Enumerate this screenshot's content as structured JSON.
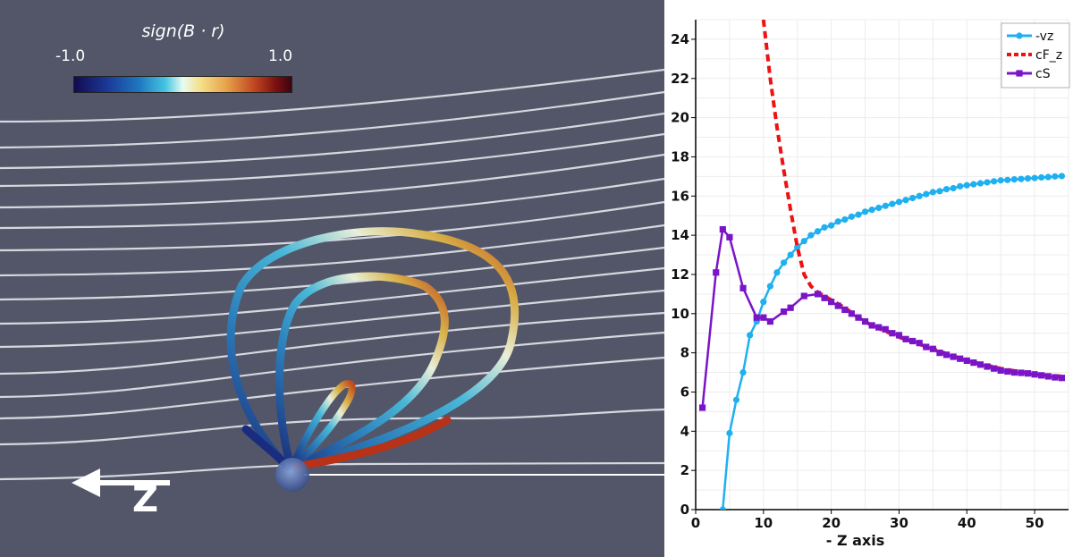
{
  "left_panel": {
    "colorbar": {
      "title": "sign(B · r)",
      "min_label": "-1.0",
      "max_label": "1.0"
    },
    "axis_label": "Z"
  },
  "chart_data": {
    "type": "line",
    "xlabel": "- Z axis",
    "ylabel": "",
    "xlim": [
      0,
      55
    ],
    "ylim": [
      0,
      25
    ],
    "x_ticks": [
      "0",
      "10",
      "20",
      "30",
      "40",
      "50"
    ],
    "y_ticks": [
      "0",
      "2",
      "4",
      "6",
      "8",
      "10",
      "12",
      "14",
      "16",
      "18",
      "20",
      "22",
      "24"
    ],
    "grid": true,
    "legend": "top-right",
    "series": [
      {
        "name": "-vz",
        "color": "#1fb0f0",
        "style": "solid",
        "marker": "circle",
        "x": [
          4,
          5,
          6,
          7,
          8,
          9,
          10,
          11,
          12,
          13,
          14,
          15,
          16,
          17,
          18,
          19,
          20,
          21,
          22,
          23,
          24,
          25,
          26,
          27,
          28,
          29,
          30,
          31,
          32,
          33,
          34,
          35,
          36,
          37,
          38,
          39,
          40,
          41,
          42,
          43,
          44,
          45,
          46,
          47,
          48,
          49,
          50,
          51,
          52,
          53,
          54
        ],
        "y": [
          0,
          3.9,
          5.6,
          7.0,
          8.9,
          9.6,
          10.6,
          11.4,
          12.1,
          12.6,
          13.0,
          13.4,
          13.7,
          14.0,
          14.2,
          14.4,
          14.5,
          14.7,
          14.8,
          14.95,
          15.05,
          15.2,
          15.3,
          15.4,
          15.5,
          15.6,
          15.7,
          15.8,
          15.9,
          16.0,
          16.1,
          16.2,
          16.25,
          16.35,
          16.4,
          16.5,
          16.55,
          16.6,
          16.65,
          16.7,
          16.75,
          16.8,
          16.82,
          16.85,
          16.87,
          16.9,
          16.92,
          16.95,
          16.97,
          17.0,
          17.02
        ]
      },
      {
        "name": "cF_z",
        "color": "#ee1111",
        "style": "dashed",
        "marker": "none",
        "x": [
          10,
          11,
          12,
          13,
          14,
          15,
          16,
          17,
          18,
          19,
          20,
          22,
          24,
          26,
          28,
          30,
          35,
          40,
          45,
          50,
          54
        ],
        "y": [
          25,
          22.0,
          19.5,
          17.3,
          15.3,
          13.4,
          12.0,
          11.4,
          11.1,
          10.9,
          10.7,
          10.3,
          9.8,
          9.4,
          9.1,
          8.8,
          8.2,
          7.6,
          7.2,
          6.9,
          6.8
        ]
      },
      {
        "name": "cS",
        "color": "#7a14c8",
        "style": "solid",
        "marker": "square",
        "x": [
          1,
          3,
          4,
          5,
          7,
          9,
          10,
          11,
          13,
          14,
          16,
          18,
          19,
          20,
          21,
          22,
          23,
          24,
          25,
          26,
          27,
          28,
          29,
          30,
          31,
          32,
          33,
          34,
          35,
          36,
          37,
          38,
          39,
          40,
          41,
          42,
          43,
          44,
          45,
          46,
          47,
          48,
          49,
          50,
          51,
          52,
          53,
          54
        ],
        "y": [
          5.2,
          12.1,
          14.3,
          13.9,
          11.3,
          9.8,
          9.8,
          9.6,
          10.1,
          10.3,
          10.9,
          11.0,
          10.8,
          10.6,
          10.4,
          10.2,
          10.0,
          9.8,
          9.6,
          9.4,
          9.3,
          9.2,
          9.0,
          8.9,
          8.7,
          8.6,
          8.5,
          8.3,
          8.2,
          8.0,
          7.9,
          7.8,
          7.7,
          7.6,
          7.5,
          7.4,
          7.3,
          7.2,
          7.1,
          7.05,
          7.0,
          6.98,
          6.95,
          6.9,
          6.85,
          6.8,
          6.75,
          6.72
        ]
      }
    ]
  }
}
